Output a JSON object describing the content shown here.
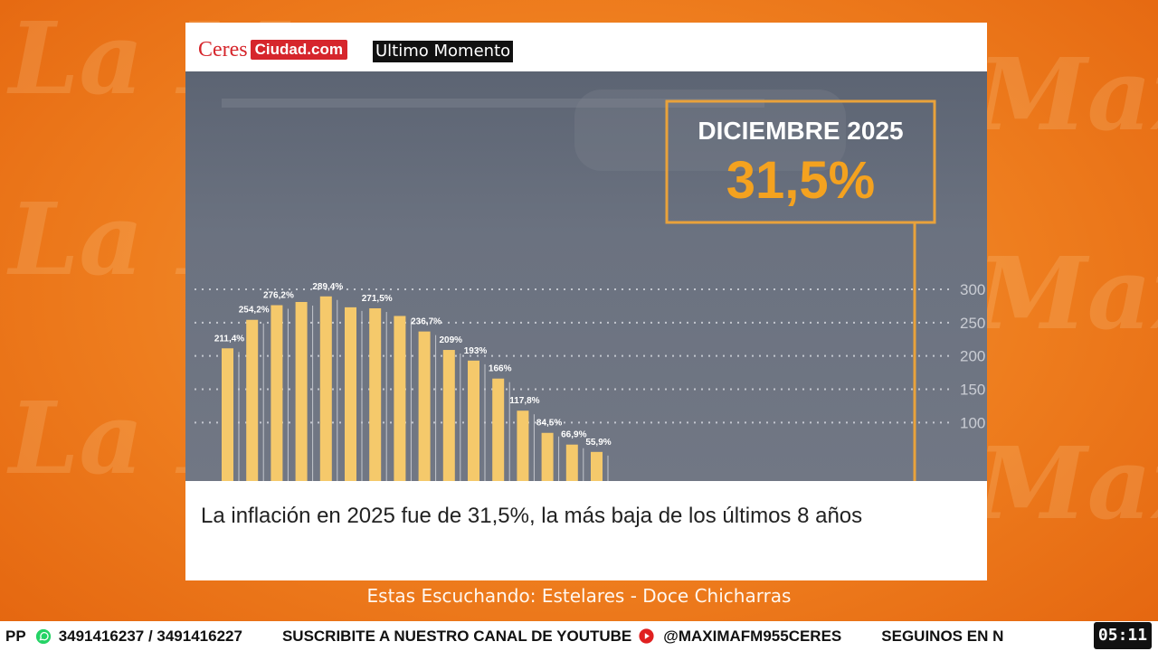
{
  "header": {
    "logo_ceres": "Ceres",
    "logo_ciudad": "Ciudad.com",
    "badge": "Ultimo Momento"
  },
  "highlight": {
    "label": "DICIEMBRE 2025",
    "value": "31,5%"
  },
  "chart_data": {
    "type": "bar",
    "value_labels": [
      "211,4%",
      "254,2%",
      "276,2%",
      "",
      "289,4%",
      "",
      "271,5%",
      "",
      "236,7%",
      "209%",
      "193%",
      "166%",
      "117,8%",
      "84,5%",
      "66,9%",
      "55,9%"
    ],
    "values": [
      211.4,
      254.2,
      276.2,
      281,
      289.4,
      273,
      271.5,
      260,
      236.7,
      209,
      193,
      166,
      117.8,
      84.5,
      66.9,
      55.9
    ],
    "y_tick_labels": [
      "300",
      "250",
      "200",
      "150",
      "100"
    ],
    "ylim": [
      0,
      300
    ],
    "grid": true,
    "bar_color": "#f5c96b"
  },
  "headline": "La inflación en 2025 fue de 31,5%, la más baja de los últimos 8 años",
  "now_playing": "Estas Escuchando: Estelares - Doce Chicharras",
  "ticker": {
    "prefix": "PP",
    "phones": "3491416237 / 3491416227",
    "subscribe": "SUSCRIBITE A NUESTRO CANAL DE YOUTUBE",
    "handle": "@MAXIMAFM955CERES",
    "follow": "SEGUINOS EN N"
  },
  "clock": "05:11"
}
